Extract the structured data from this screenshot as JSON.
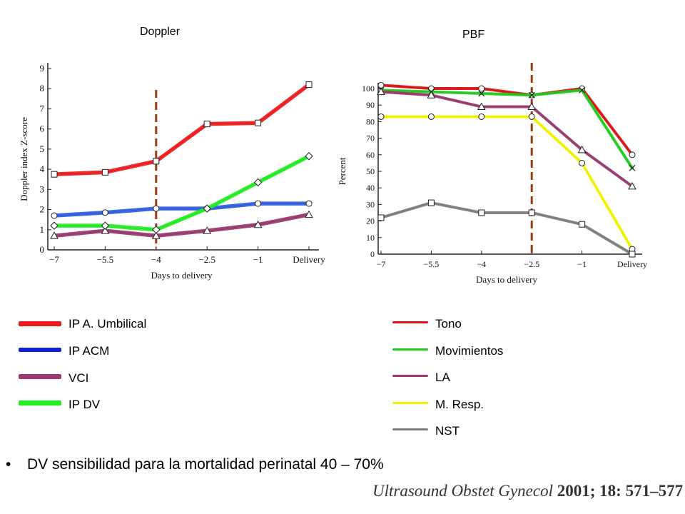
{
  "titles": {
    "left": "Doppler",
    "right": "PBF"
  },
  "chart_data": [
    {
      "type": "line",
      "title": "Doppler",
      "ylabel": "Doppler index Z-score",
      "xlabel": "Days to delivery",
      "categories": [
        "−7",
        "−5.5",
        "−4",
        "−2.5",
        "−1",
        "Delivery"
      ],
      "x": [
        -7,
        -5.5,
        -4,
        -2.5,
        -1,
        0.5
      ],
      "ylim": [
        0,
        9
      ],
      "yticks": [
        0,
        1,
        2,
        3,
        4,
        5,
        6,
        7,
        8,
        9
      ],
      "vline_x": -4,
      "series": [
        {
          "name": "IP A. Umbilical",
          "color": "#ee1c1c",
          "marker": "square",
          "values": [
            3.75,
            3.85,
            4.4,
            6.25,
            6.3,
            8.2
          ]
        },
        {
          "name": "IP ACM",
          "color": "#3060e0",
          "marker": "circle",
          "values": [
            1.7,
            1.85,
            2.05,
            2.05,
            2.3,
            2.3
          ]
        },
        {
          "name": "VCI",
          "color": "#9a3a70",
          "marker": "triangle",
          "values": [
            0.7,
            0.95,
            0.7,
            0.95,
            1.25,
            1.75
          ]
        },
        {
          "name": "IP DV",
          "color": "#22ee22",
          "marker": "diamond",
          "values": [
            1.2,
            1.2,
            1.0,
            2.05,
            3.35,
            4.65
          ]
        }
      ]
    },
    {
      "type": "line",
      "title": "PBF",
      "ylabel": "Percent",
      "xlabel": "Days to delivery",
      "categories": [
        "−7",
        "−5.5",
        "−4",
        "−2.5",
        "−1",
        "Delivery"
      ],
      "x": [
        -7,
        -5.5,
        -4,
        -2.5,
        -1,
        0.5
      ],
      "ylim": [
        0,
        100
      ],
      "yticks": [
        0,
        10,
        20,
        30,
        40,
        50,
        60,
        70,
        80,
        90,
        100
      ],
      "vline_x": -2.5,
      "series": [
        {
          "name": "Tono",
          "color": "#dd1414",
          "marker": "circle",
          "values": [
            102,
            100,
            100,
            96,
            100,
            60
          ]
        },
        {
          "name": "Movimientos",
          "color": "#22cc22",
          "marker": "x",
          "values": [
            99,
            98,
            97,
            96,
            99,
            52
          ]
        },
        {
          "name": "LA",
          "color": "#9a3a70",
          "marker": "triangle",
          "values": [
            98,
            96,
            89,
            89,
            63,
            41
          ]
        },
        {
          "name": "M. Resp.",
          "color": "#f5f500",
          "marker": "circle",
          "values": [
            83,
            83,
            83,
            83,
            55,
            3
          ]
        },
        {
          "name": "NST",
          "color": "#808080",
          "marker": "square",
          "values": [
            22,
            31,
            25,
            25,
            18,
            0
          ]
        }
      ]
    }
  ],
  "legend_left": [
    {
      "label": "IP A. Umbilical",
      "color": "#ee1c1c"
    },
    {
      "label": "IP ACM",
      "color": "#1020d8"
    },
    {
      "label": "VCI",
      "color": "#9a3a70"
    },
    {
      "label": "IP DV",
      "color": "#22ee22"
    }
  ],
  "legend_right": [
    {
      "label": "Tono",
      "color": "#dd1414"
    },
    {
      "label": "Movimientos",
      "color": "#22cc22"
    },
    {
      "label": "LA",
      "color": "#9a3a70"
    },
    {
      "label": "M. Resp.",
      "color": "#f5f500"
    },
    {
      "label": "NST",
      "color": "#808080"
    }
  ],
  "bullet": {
    "symbol": "•",
    "text": "DV sensibilidad para la mortalidad perinatal 40 – 70%"
  },
  "citation": {
    "journal": "Ultrasound Obstet Gynecol",
    "year": "2001;",
    "volume": "18:",
    "pages": "571–577"
  },
  "colors": {
    "vline": "#9c3a12",
    "axis": "#222222",
    "marker_edge": "#222222"
  }
}
